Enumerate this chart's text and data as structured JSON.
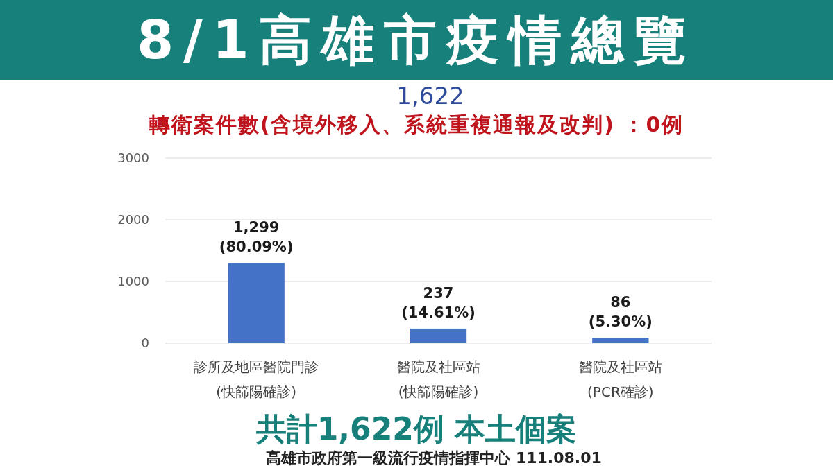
{
  "chart_data": {
    "type": "bar",
    "title": "8/1高雄市疫情總覽",
    "subtitle": "轉衛案件數(含境外移入、系統重複通報及改判) ：0例",
    "categories": [
      "診所及地區醫院門診\n(快篩陽確診)",
      "醫院及社區站\n(快篩陽確診)",
      "醫院及社區站\n(PCR確診)"
    ],
    "values": [
      1299,
      237,
      86
    ],
    "value_labels": [
      "1,299\n(80.09%)",
      "237\n(14.61%)",
      "86\n(5.30%)"
    ],
    "color": "#4472c4",
    "ylim": [
      0,
      3000
    ],
    "yticks": [
      0,
      1000,
      2000,
      3000
    ],
    "grid": "y",
    "annotations": [
      "1,622",
      "共計1,622例 本土個案",
      "高雄市政府第一級流行疫情指揮中心 111.08.01"
    ]
  }
}
